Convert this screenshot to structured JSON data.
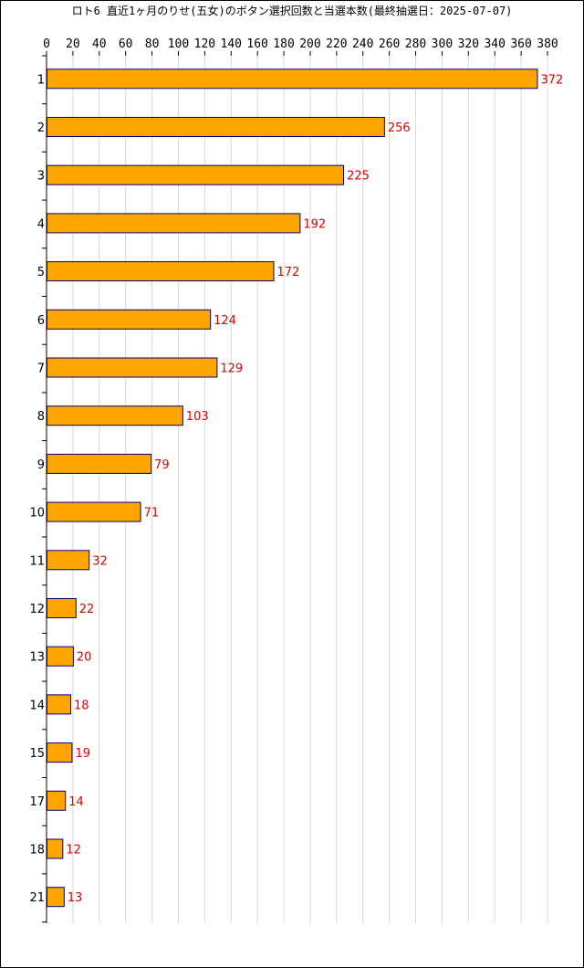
{
  "chart_data": {
    "type": "bar",
    "orientation": "horizontal",
    "title": "ロト6 直近1ヶ月のりせ(五女)のボタン選択回数と当選本数(最終抽選日：2025-07-07)",
    "xlabel": "",
    "ylabel": "",
    "xlim": [
      0,
      380
    ],
    "x_ticks": [
      0,
      20,
      40,
      60,
      80,
      100,
      120,
      140,
      160,
      180,
      200,
      220,
      240,
      260,
      280,
      300,
      320,
      340,
      360,
      380
    ],
    "grid": "vertical",
    "categories": [
      "1",
      "2",
      "3",
      "4",
      "5",
      "6",
      "7",
      "8",
      "9",
      "10",
      "11",
      "12",
      "13",
      "14",
      "15",
      "17",
      "18",
      "21"
    ],
    "values": [
      372,
      256,
      225,
      192,
      172,
      124,
      129,
      103,
      79,
      71,
      32,
      22,
      20,
      18,
      19,
      14,
      12,
      13
    ],
    "value_labels": [
      "372",
      "256",
      "225",
      "192",
      "172",
      "124",
      "129",
      "103",
      "79",
      "71",
      "32",
      "22",
      "20",
      "18",
      "19",
      "14",
      "12",
      "13"
    ],
    "colors": {
      "bar_fill": "#ffa500",
      "bar_stroke": "#000080",
      "value_label": "#e00000",
      "grid": "#d8d8d8",
      "axis": "#000000"
    }
  }
}
